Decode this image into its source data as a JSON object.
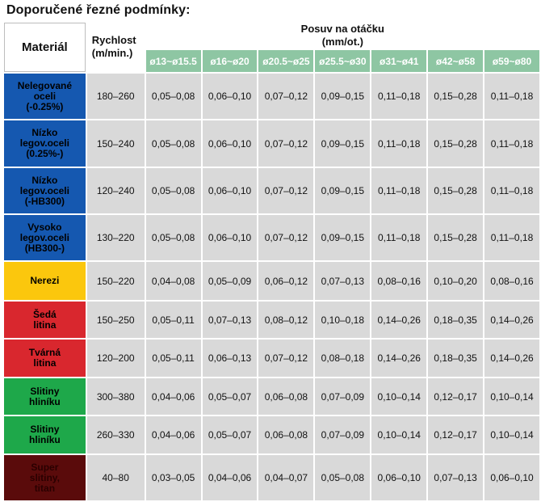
{
  "title": "Doporučené řezné podmínky:",
  "header": {
    "material": "Materiál",
    "speed": [
      "Rychlost",
      "(m/min.)"
    ],
    "feed": [
      "Posuv na otáčku",
      "(mm/ot.)"
    ],
    "diameters": [
      "ø13~ø15.5",
      "ø16~ø20",
      "ø20.5~ø25",
      "ø25.5~ø30",
      "ø31~ø41",
      "ø42~ø58",
      "ø59~ø80"
    ]
  },
  "rows": [
    {
      "material": [
        "Nelegované",
        "oceli",
        "(-0.25%)"
      ],
      "bg": "#1558b0",
      "fg": "#000000",
      "speed": "180–260",
      "feeds": [
        "0,05–0,08",
        "0,06–0,10",
        "0,07–0,12",
        "0,09–0,15",
        "0,11–0,18",
        "0,15–0,28",
        "0,11–0,18"
      ]
    },
    {
      "material": [
        "Nízko",
        "legov.oceli",
        "(0.25%-)"
      ],
      "bg": "#1558b0",
      "fg": "#000000",
      "speed": "150–240",
      "feeds": [
        "0,05–0,08",
        "0,06–0,10",
        "0,07–0,12",
        "0,09–0,15",
        "0,11–0,18",
        "0,15–0,28",
        "0,11–0,18"
      ]
    },
    {
      "material": [
        "Nízko",
        "legov.oceli",
        "(-HB300)"
      ],
      "bg": "#1558b0",
      "fg": "#000000",
      "speed": "120–240",
      "feeds": [
        "0,05–0,08",
        "0,06–0,10",
        "0,07–0,12",
        "0,09–0,15",
        "0,11–0,18",
        "0,15–0,28",
        "0,11–0,18"
      ]
    },
    {
      "material": [
        "Vysoko",
        "legov.oceli",
        "(HB300-)"
      ],
      "bg": "#1558b0",
      "fg": "#000000",
      "speed": "130–220",
      "feeds": [
        "0,05–0,08",
        "0,06–0,10",
        "0,07–0,12",
        "0,09–0,15",
        "0,11–0,18",
        "0,15–0,28",
        "0,11–0,18"
      ]
    },
    {
      "material": [
        "Nerezi"
      ],
      "bg": "#fbc70d",
      "fg": "#000000",
      "speed": "150–220",
      "feeds": [
        "0,04–0,08",
        "0,05–0,09",
        "0,06–0,12",
        "0,07–0,13",
        "0,08–0,16",
        "0,10–0,20",
        "0,08–0,16"
      ]
    },
    {
      "material": [
        "Šedá",
        "litina"
      ],
      "bg": "#d9272e",
      "fg": "#000000",
      "speed": "150–250",
      "feeds": [
        "0,05–0,11",
        "0,07–0,13",
        "0,08–0,12",
        "0,10–0,18",
        "0,14–0,26",
        "0,18–0,35",
        "0,14–0,26"
      ]
    },
    {
      "material": [
        "Tvárná",
        "litina"
      ],
      "bg": "#d9272e",
      "fg": "#000000",
      "speed": "120–200",
      "feeds": [
        "0,05–0,11",
        "0,06–0,13",
        "0,07–0,12",
        "0,08–0,18",
        "0,14–0,26",
        "0,18–0,35",
        "0,14–0,26"
      ]
    },
    {
      "material": [
        "Slitiny",
        "hliníku"
      ],
      "bg": "#1ea84a",
      "fg": "#000000",
      "speed": "300–380",
      "feeds": [
        "0,04–0,06",
        "0,05–0,07",
        "0,06–0,08",
        "0,07–0,09",
        "0,10–0,14",
        "0,12–0,17",
        "0,10–0,14"
      ]
    },
    {
      "material": [
        "Slitiny",
        "hliníku"
      ],
      "bg": "#1ea84a",
      "fg": "#000000",
      "speed": "260–330",
      "feeds": [
        "0,04–0,06",
        "0,05–0,07",
        "0,06–0,08",
        "0,07–0,09",
        "0,10–0,14",
        "0,12–0,17",
        "0,10–0,14"
      ]
    },
    {
      "material": [
        "Super",
        "slitiny,",
        "titan"
      ],
      "bg": "#5a0b0b",
      "fg": "#2a0000",
      "speed": "40–80",
      "feeds": [
        "0,03–0,05",
        "0,04–0,06",
        "0,04–0,07",
        "0,05–0,08",
        "0,06–0,10",
        "0,07–0,13",
        "0,06–0,10"
      ]
    }
  ]
}
